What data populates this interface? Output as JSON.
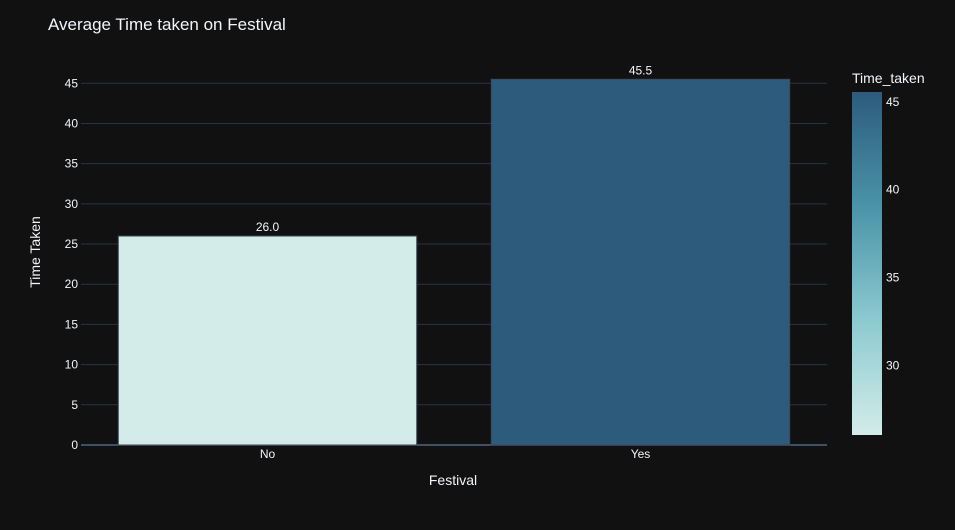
{
  "chart_data": {
    "type": "bar",
    "title": "Average Time taken on Festival",
    "xlabel": "Festival",
    "ylabel": "Time Taken",
    "categories": [
      "No",
      "Yes"
    ],
    "values": [
      26.0,
      45.5
    ],
    "data_labels": [
      "26.0",
      "45.5"
    ],
    "ylim": [
      0,
      47.9
    ],
    "yticks": [
      0,
      5,
      10,
      15,
      20,
      25,
      30,
      35,
      40,
      45
    ],
    "grid": true,
    "colorbar": {
      "title": "Time_taken",
      "range": [
        26.0,
        45.5
      ],
      "ticks": [
        30,
        35,
        40,
        45
      ],
      "colorscale": [
        "#d3ece9",
        "#8ccad0",
        "#4a93a8",
        "#2d5b7c"
      ]
    },
    "background": "#111111",
    "legend": "colorbar-right"
  }
}
